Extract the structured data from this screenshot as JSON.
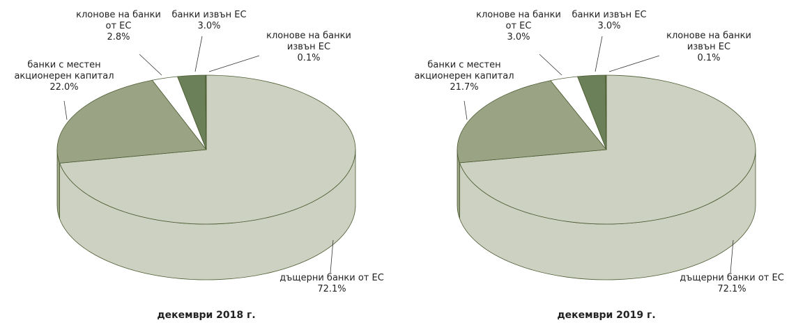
{
  "chart_data": [
    {
      "type": "pie3d",
      "title": "декември 2018 г.",
      "categories": [
        "дъщерни банки от ЕС",
        "банки с местен акционерен капитал",
        "клонове на банки от ЕС",
        "банки извън ЕС",
        "клонове на банки извън ЕС"
      ],
      "values": [
        72.1,
        22.0,
        2.8,
        3.0,
        0.1
      ],
      "value_labels": [
        "72.1%",
        "22.0%",
        "2.8%",
        "3.0%",
        "0.1%"
      ],
      "colors": [
        "#cdd1c2",
        "#9ba385",
        "#ffffff",
        "#6b7f58",
        "#6b7f58"
      ]
    },
    {
      "type": "pie3d",
      "title": "декември 2019 г.",
      "categories": [
        "дъщерни банки от ЕС",
        "банки с местен акционерен капитал",
        "клонове на банки от ЕС",
        "банки извън ЕС",
        "клонове на банки извън ЕС"
      ],
      "values": [
        72.1,
        21.7,
        3.0,
        3.0,
        0.1
      ],
      "value_labels": [
        "72.1%",
        "21.7%",
        "3.0%",
        "3.0%",
        "0.1%"
      ],
      "colors": [
        "#cdd1c2",
        "#9ba385",
        "#ffffff",
        "#6b7f58",
        "#6b7f58"
      ]
    }
  ]
}
